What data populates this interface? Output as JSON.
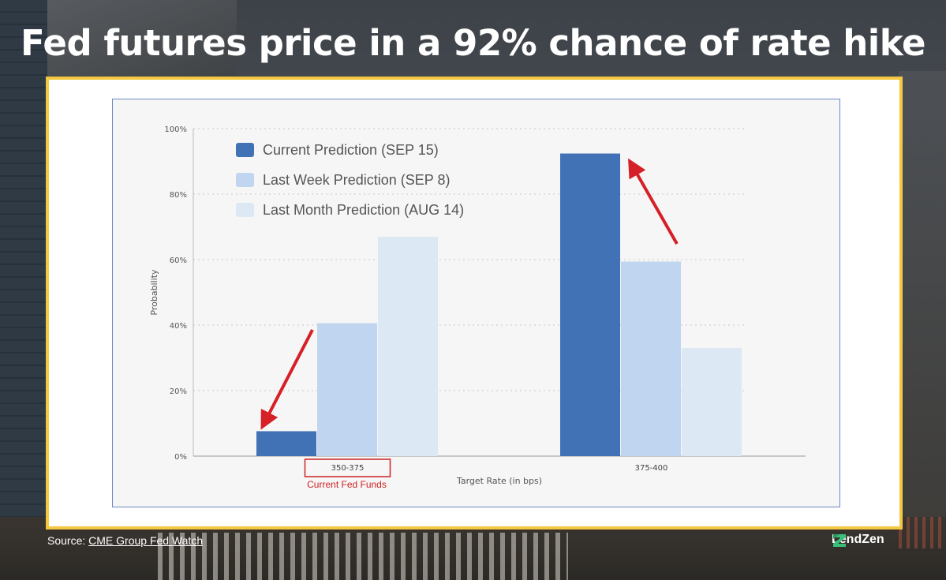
{
  "title": "Fed futures price in a 92% chance of rate hike",
  "source": {
    "prefix": "Source: ",
    "link_text": "CME Group Fed Watch"
  },
  "brand": {
    "name": "LendZen"
  },
  "annotation": {
    "current_label": "Current Fed Funds"
  },
  "colors": {
    "current": "#4272b6",
    "last_week": "#c0d5ef",
    "last_month": "#dde8f5",
    "arrow": "#d62027",
    "frame": "#f5c842",
    "box": "#cc2222"
  },
  "chart_data": {
    "type": "bar",
    "categories": [
      "350-375",
      "375-400"
    ],
    "series": [
      {
        "name": "Current Prediction (SEP 15)",
        "values": [
          7.6,
          92.4
        ]
      },
      {
        "name": "Last Week Prediction (SEP 8)",
        "values": [
          40.6,
          59.4
        ]
      },
      {
        "name": "Last Month Prediction (AUG 14)",
        "values": [
          67.0,
          33.0
        ]
      }
    ],
    "xlabel": "Target Rate (in bps)",
    "ylabel": "Probability",
    "ylim": [
      0,
      100
    ],
    "yticks": [
      "0%",
      "20%",
      "40%",
      "60%",
      "80%",
      "100%"
    ],
    "grid": true,
    "legend": "top-left"
  }
}
